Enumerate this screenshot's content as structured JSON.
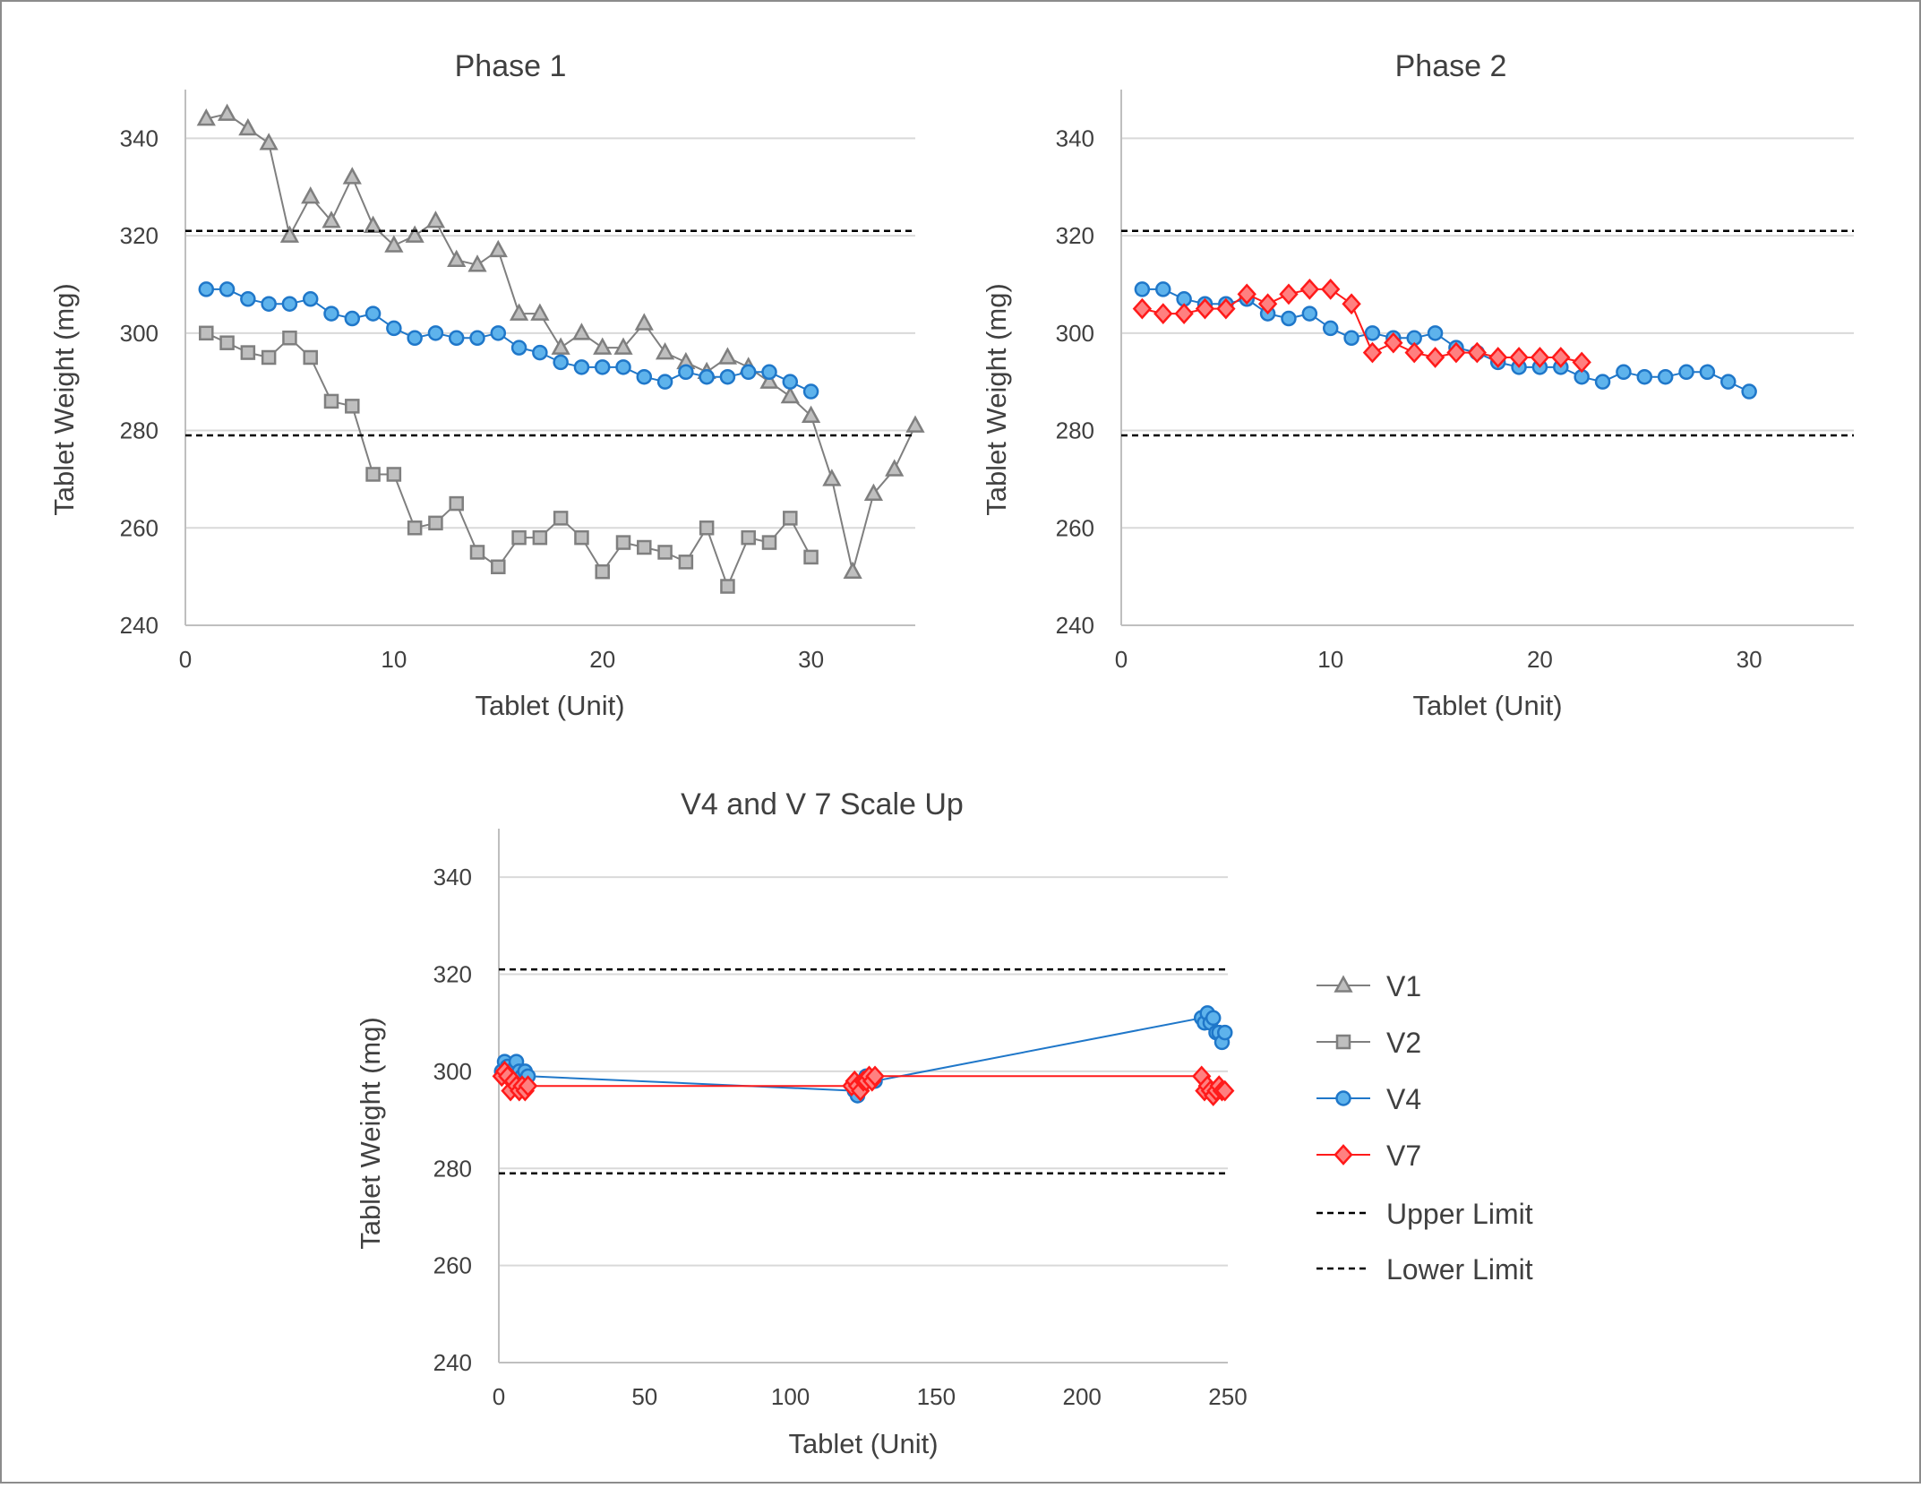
{
  "colors": {
    "V1": "#7f7f7f",
    "V1_fill": "#bfbfbf",
    "V2": "#7f7f7f",
    "V2_fill": "#bfbfbf",
    "V4": "#1f77c9",
    "V4_fill": "#5eb3ec",
    "V7": "#ff1a1a",
    "V7_fill": "#ff8080",
    "limits": "#000000"
  },
  "chart_data": [
    {
      "type": "line",
      "title": "Phase 1",
      "xlabel": "Tablet (Unit)",
      "ylabel": "Tablet Weight (mg)",
      "xlim": [
        0,
        35
      ],
      "ylim": [
        240,
        350
      ],
      "xticks": [
        0,
        10,
        20,
        30
      ],
      "yticks": [
        240,
        260,
        280,
        300,
        320,
        340
      ],
      "grid": "horizontal",
      "series": [
        {
          "name": "V1",
          "marker": "triangle",
          "x": [
            1,
            2,
            3,
            4,
            5,
            6,
            7,
            8,
            9,
            10,
            11,
            12,
            13,
            14,
            15,
            16,
            17,
            18,
            19,
            20,
            21,
            22,
            23,
            24,
            25,
            26,
            27,
            28,
            29,
            30,
            31,
            32,
            33,
            34,
            35
          ],
          "y": [
            344,
            345,
            342,
            339,
            320,
            328,
            323,
            332,
            322,
            318,
            320,
            323,
            315,
            314,
            317,
            304,
            304,
            297,
            300,
            297,
            297,
            302,
            296,
            294,
            292,
            295,
            293,
            290,
            287,
            283,
            270,
            251,
            267,
            272,
            281
          ]
        },
        {
          "name": "V2",
          "marker": "square",
          "x": [
            1,
            2,
            3,
            4,
            5,
            6,
            7,
            8,
            9,
            10,
            11,
            12,
            13,
            14,
            15,
            16,
            17,
            18,
            19,
            20,
            21,
            22,
            23,
            24,
            25,
            26,
            27,
            28,
            29,
            30
          ],
          "y": [
            300,
            298,
            296,
            295,
            299,
            295,
            286,
            285,
            271,
            271,
            260,
            261,
            265,
            255,
            252,
            258,
            258,
            262,
            258,
            251,
            257,
            256,
            255,
            253,
            260,
            248,
            258,
            257,
            262,
            254
          ]
        },
        {
          "name": "V4",
          "marker": "circle",
          "x": [
            1,
            2,
            3,
            4,
            5,
            6,
            7,
            8,
            9,
            10,
            11,
            12,
            13,
            14,
            15,
            16,
            17,
            18,
            19,
            20,
            21,
            22,
            23,
            24,
            25,
            26,
            27,
            28,
            29,
            30
          ],
          "y": [
            309,
            309,
            307,
            306,
            306,
            307,
            304,
            303,
            304,
            301,
            299,
            300,
            299,
            299,
            300,
            297,
            296,
            294,
            293,
            293,
            293,
            291,
            290,
            292,
            291,
            291,
            292,
            292,
            290,
            288
          ]
        },
        {
          "name": "Upper Limit",
          "style": "dashed",
          "x": [
            0,
            35
          ],
          "y": [
            321,
            321
          ]
        },
        {
          "name": "Lower Limit",
          "style": "dashed",
          "x": [
            0,
            35
          ],
          "y": [
            279,
            279
          ]
        }
      ]
    },
    {
      "type": "line",
      "title": "Phase 2",
      "xlabel": "Tablet (Unit)",
      "ylabel": "Tablet Weight (mg)",
      "xlim": [
        0,
        35
      ],
      "ylim": [
        240,
        350
      ],
      "xticks": [
        0,
        10,
        20,
        30
      ],
      "yticks": [
        240,
        260,
        280,
        300,
        320,
        340
      ],
      "grid": "horizontal",
      "series": [
        {
          "name": "V4",
          "marker": "circle",
          "x": [
            1,
            2,
            3,
            4,
            5,
            6,
            7,
            8,
            9,
            10,
            11,
            12,
            13,
            14,
            15,
            16,
            17,
            18,
            19,
            20,
            21,
            22,
            23,
            24,
            25,
            26,
            27,
            28,
            29,
            30
          ],
          "y": [
            309,
            309,
            307,
            306,
            306,
            307,
            304,
            303,
            304,
            301,
            299,
            300,
            299,
            299,
            300,
            297,
            296,
            294,
            293,
            293,
            293,
            291,
            290,
            292,
            291,
            291,
            292,
            292,
            290,
            288
          ]
        },
        {
          "name": "V7",
          "marker": "diamond",
          "x": [
            1,
            2,
            3,
            4,
            5,
            6,
            7,
            8,
            9,
            10,
            11,
            12,
            13,
            14,
            15,
            16,
            17,
            18,
            19,
            20,
            21,
            22
          ],
          "y": [
            305,
            304,
            304,
            305,
            305,
            308,
            306,
            308,
            309,
            309,
            306,
            296,
            298,
            296,
            295,
            296,
            296,
            295,
            295,
            295,
            295,
            294
          ]
        },
        {
          "name": "Upper Limit",
          "style": "dashed",
          "x": [
            0,
            35
          ],
          "y": [
            321,
            321
          ]
        },
        {
          "name": "Lower Limit",
          "style": "dashed",
          "x": [
            0,
            35
          ],
          "y": [
            279,
            279
          ]
        }
      ]
    },
    {
      "type": "line",
      "title": "V4 and V 7 Scale Up",
      "xlabel": "Tablet (Unit)",
      "ylabel": "Tablet Weight (mg)",
      "xlim": [
        0,
        250
      ],
      "ylim": [
        240,
        350
      ],
      "xticks": [
        0,
        50,
        100,
        150,
        200,
        250
      ],
      "yticks": [
        240,
        260,
        280,
        300,
        320,
        340
      ],
      "grid": "horizontal",
      "legend": "right",
      "series": [
        {
          "name": "V4",
          "marker": "circle",
          "x": [
            1,
            2,
            3,
            4,
            5,
            6,
            7,
            8,
            9,
            10,
            122,
            123,
            124,
            125,
            126,
            127,
            128,
            129,
            241,
            242,
            243,
            244,
            245,
            246,
            247,
            248,
            249
          ],
          "y": [
            300,
            302,
            301,
            300,
            298,
            302,
            300,
            299,
            300,
            299,
            296,
            295,
            297,
            298,
            299,
            298,
            298,
            298,
            311,
            310,
            312,
            310,
            311,
            308,
            308,
            306,
            308
          ]
        },
        {
          "name": "V7",
          "marker": "diamond",
          "x": [
            1,
            2,
            3,
            4,
            5,
            6,
            7,
            8,
            9,
            10,
            121,
            122,
            123,
            124,
            125,
            126,
            127,
            128,
            129,
            241,
            242,
            243,
            244,
            245,
            246,
            247,
            248,
            249
          ],
          "y": [
            299,
            300,
            299,
            296,
            298,
            297,
            296,
            297,
            296,
            297,
            297,
            298,
            297,
            296,
            298,
            298,
            299,
            298,
            299,
            299,
            296,
            297,
            296,
            295,
            296,
            297,
            296,
            296
          ]
        },
        {
          "name": "Upper Limit",
          "style": "dashed",
          "x": [
            0,
            250
          ],
          "y": [
            321,
            321
          ]
        },
        {
          "name": "Lower Limit",
          "style": "dashed",
          "x": [
            0,
            250
          ],
          "y": [
            279,
            279
          ]
        }
      ]
    }
  ],
  "legend": {
    "items": [
      {
        "label": "V1",
        "series": "V1",
        "marker": "triangle"
      },
      {
        "label": "V2",
        "series": "V2",
        "marker": "square"
      },
      {
        "label": "V4",
        "series": "V4",
        "marker": "circle"
      },
      {
        "label": "V7",
        "series": "V7",
        "marker": "diamond"
      },
      {
        "label": "Upper Limit",
        "series": "limits",
        "marker": "dashed"
      },
      {
        "label": "Lower Limit",
        "series": "limits",
        "marker": "dashed"
      }
    ]
  }
}
